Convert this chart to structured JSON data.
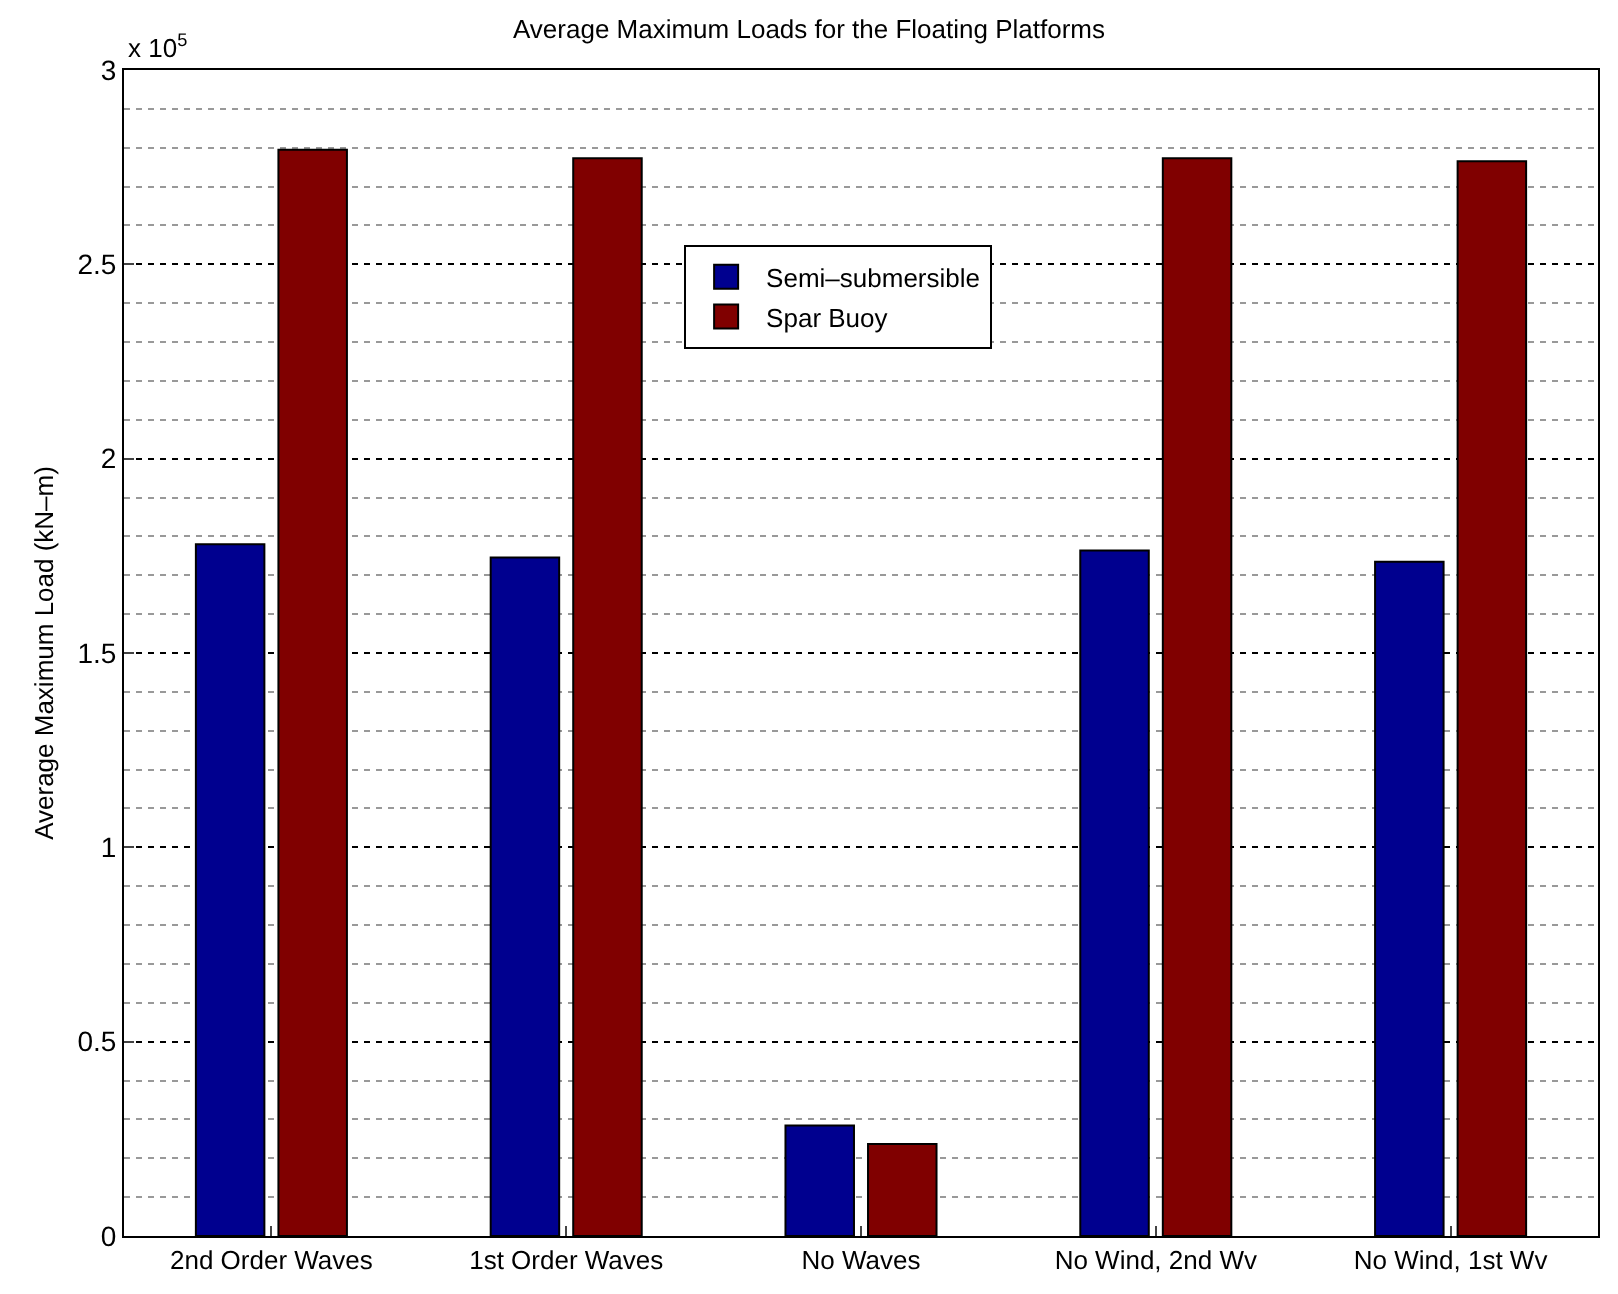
{
  "chart_data": {
    "type": "bar",
    "title": "Average Maximum Loads for the Floating Platforms",
    "ylabel": "Average Maximum Load (kN–m)",
    "categories": [
      "2nd Order Waves",
      "1st Order Waves",
      "No Waves",
      "No Wind, 2nd Wv",
      "No Wind, 1st Wv"
    ],
    "series": [
      {
        "name": "Semi–submersible",
        "color": "#00008f",
        "values": [
          1.78,
          1.746,
          0.284,
          1.764,
          1.735
        ]
      },
      {
        "name": "Spar Buoy",
        "color": "#800000",
        "values": [
          2.795,
          2.773,
          0.237,
          2.773,
          2.765
        ]
      }
    ],
    "ylim": [
      0,
      3
    ],
    "yticks": [
      0,
      0.5,
      1,
      1.5,
      2,
      2.5,
      3
    ],
    "annotations": [
      "x 10$^{5}$"
    ],
    "grid": "y",
    "legend": "top"
  }
}
